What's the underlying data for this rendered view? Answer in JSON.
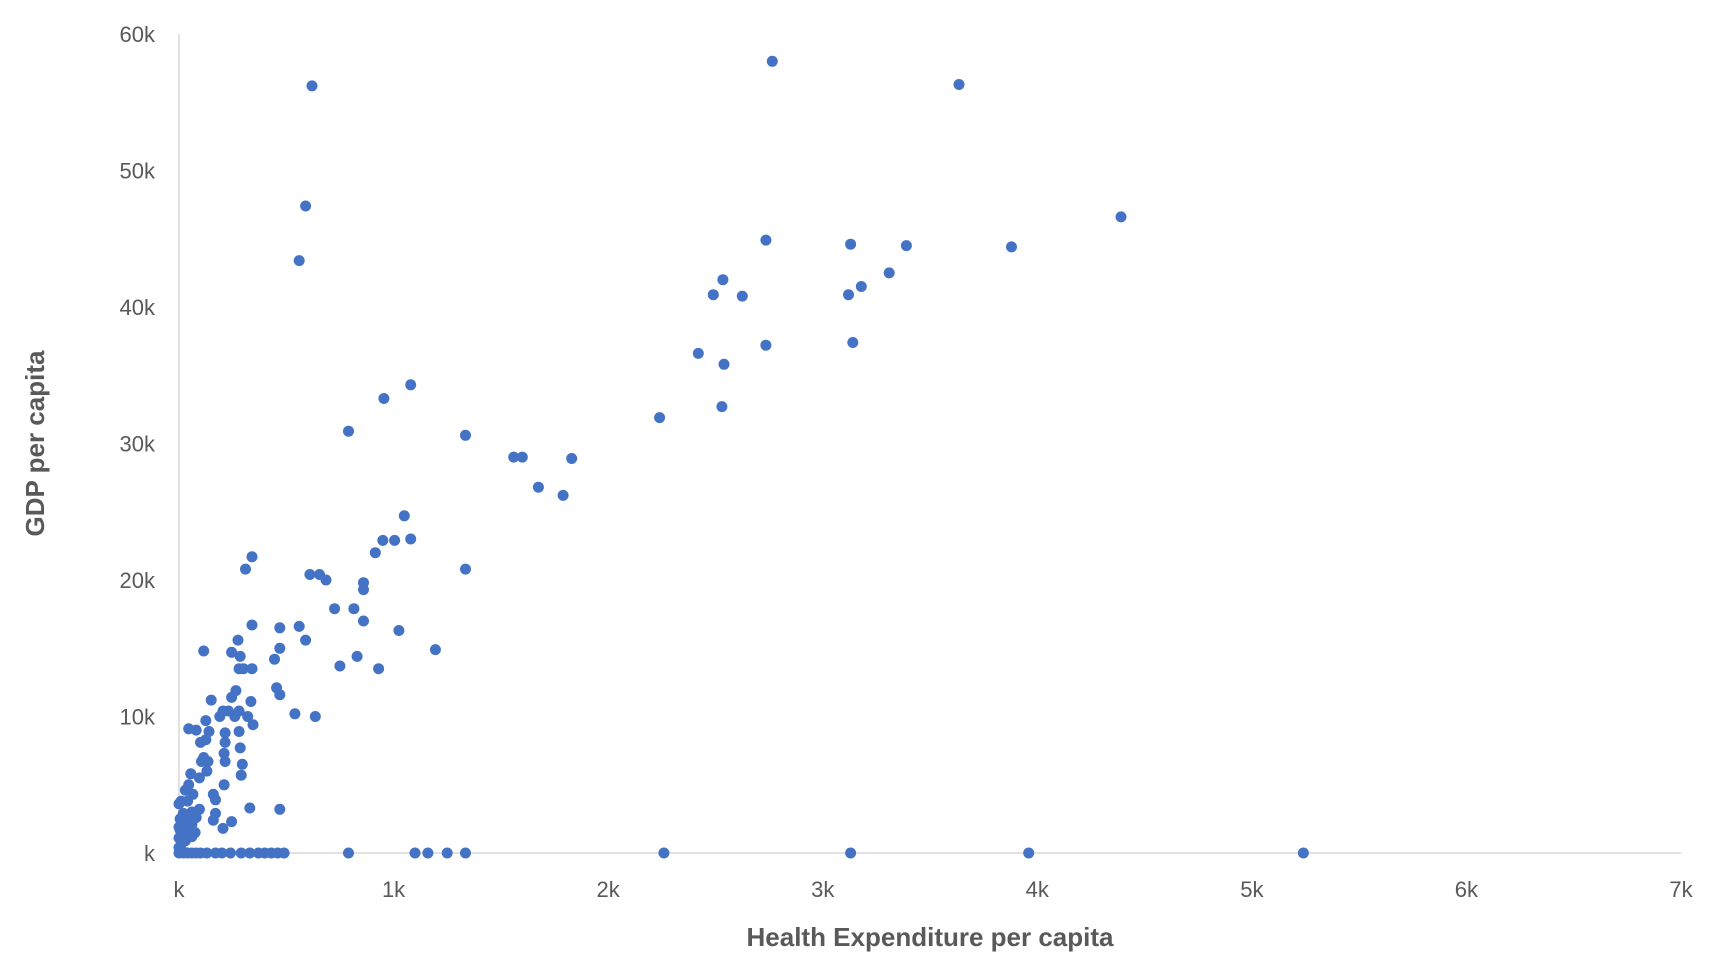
{
  "chart_data": {
    "type": "scatter",
    "title": "",
    "xlabel": "Health Expenditure per capita",
    "ylabel": "GDP per capita",
    "xlim": [
      0,
      7000
    ],
    "ylim": [
      0,
      60000
    ],
    "x_ticks": [
      0,
      1000,
      2000,
      3000,
      4000,
      5000,
      6000,
      7000
    ],
    "x_tick_labels": [
      "k",
      "1k",
      "2k",
      "3k",
      "4k",
      "5k",
      "6k",
      "7k"
    ],
    "y_ticks": [
      0,
      10000,
      20000,
      30000,
      40000,
      50000,
      60000
    ],
    "y_tick_labels": [
      "k",
      "10k",
      "20k",
      "30k",
      "40k",
      "50k",
      "60k"
    ],
    "grid": false,
    "legend": "none",
    "marker_color": "#4472c4",
    "series": [
      {
        "points": [
          [
            2765,
            58000
          ],
          [
            3635,
            56300
          ],
          [
            620,
            56200
          ],
          [
            590,
            47400
          ],
          [
            4390,
            46600
          ],
          [
            2735,
            44900
          ],
          [
            3130,
            44600
          ],
          [
            3390,
            44500
          ],
          [
            3880,
            44400
          ],
          [
            560,
            43400
          ],
          [
            3310,
            42500
          ],
          [
            2535,
            42000
          ],
          [
            3180,
            41500
          ],
          [
            2490,
            40900
          ],
          [
            3120,
            40900
          ],
          [
            2625,
            40800
          ],
          [
            2420,
            36600
          ],
          [
            2540,
            35800
          ],
          [
            2735,
            37200
          ],
          [
            3140,
            37400
          ],
          [
            1080,
            34300
          ],
          [
            955,
            33300
          ],
          [
            2530,
            32700
          ],
          [
            2240,
            31900
          ],
          [
            790,
            30900
          ],
          [
            1335,
            30600
          ],
          [
            1560,
            29000
          ],
          [
            1600,
            29000
          ],
          [
            1830,
            28900
          ],
          [
            1675,
            26800
          ],
          [
            1790,
            26200
          ],
          [
            1050,
            24700
          ],
          [
            950,
            22900
          ],
          [
            1005,
            22900
          ],
          [
            1080,
            23000
          ],
          [
            340,
            21700
          ],
          [
            915,
            22000
          ],
          [
            310,
            20800
          ],
          [
            1335,
            20800
          ],
          [
            610,
            20400
          ],
          [
            655,
            20400
          ],
          [
            685,
            20000
          ],
          [
            860,
            19800
          ],
          [
            860,
            19300
          ],
          [
            725,
            17900
          ],
          [
            815,
            17900
          ],
          [
            860,
            17000
          ],
          [
            560,
            16600
          ],
          [
            470,
            16500
          ],
          [
            340,
            16700
          ],
          [
            1025,
            16300
          ],
          [
            275,
            15600
          ],
          [
            590,
            15600
          ],
          [
            470,
            15000
          ],
          [
            115,
            14800
          ],
          [
            245,
            14700
          ],
          [
            1195,
            14900
          ],
          [
            285,
            14400
          ],
          [
            445,
            14200
          ],
          [
            830,
            14400
          ],
          [
            280,
            13500
          ],
          [
            300,
            13500
          ],
          [
            340,
            13500
          ],
          [
            750,
            13700
          ],
          [
            930,
            13500
          ],
          [
            265,
            11900
          ],
          [
            245,
            11400
          ],
          [
            455,
            12100
          ],
          [
            470,
            11600
          ],
          [
            150,
            11200
          ],
          [
            335,
            11100
          ],
          [
            205,
            10400
          ],
          [
            230,
            10400
          ],
          [
            280,
            10400
          ],
          [
            540,
            10200
          ],
          [
            635,
            10000
          ],
          [
            190,
            10000
          ],
          [
            260,
            10000
          ],
          [
            320,
            10000
          ],
          [
            125,
            9700
          ],
          [
            345,
            9400
          ],
          [
            45,
            9100
          ],
          [
            80,
            9000
          ],
          [
            140,
            8900
          ],
          [
            215,
            8800
          ],
          [
            280,
            8900
          ],
          [
            125,
            8300
          ],
          [
            100,
            8100
          ],
          [
            215,
            8100
          ],
          [
            285,
            7700
          ],
          [
            210,
            7300
          ],
          [
            115,
            7000
          ],
          [
            105,
            6700
          ],
          [
            135,
            6700
          ],
          [
            215,
            6700
          ],
          [
            295,
            6500
          ],
          [
            130,
            6000
          ],
          [
            55,
            5800
          ],
          [
            95,
            5500
          ],
          [
            290,
            5700
          ],
          [
            210,
            5000
          ],
          [
            45,
            5000
          ],
          [
            30,
            4600
          ],
          [
            65,
            4300
          ],
          [
            160,
            4300
          ],
          [
            170,
            3900
          ],
          [
            10,
            3800
          ],
          [
            40,
            3800
          ],
          [
            0,
            3600
          ],
          [
            95,
            3200
          ],
          [
            330,
            3300
          ],
          [
            470,
            3200
          ],
          [
            60,
            3000
          ],
          [
            80,
            3000
          ],
          [
            20,
            2900
          ],
          [
            170,
            2900
          ],
          [
            45,
            2600
          ],
          [
            80,
            2600
          ],
          [
            5,
            2500
          ],
          [
            160,
            2400
          ],
          [
            245,
            2300
          ],
          [
            30,
            2100
          ],
          [
            60,
            2100
          ],
          [
            0,
            1900
          ],
          [
            5,
            1700
          ],
          [
            25,
            1800
          ],
          [
            50,
            1800
          ],
          [
            205,
            1800
          ],
          [
            10,
            1500
          ],
          [
            40,
            1500
          ],
          [
            75,
            1500
          ],
          [
            0,
            1100
          ],
          [
            10,
            1000
          ],
          [
            60,
            1200
          ],
          [
            30,
            900
          ],
          [
            0,
            400
          ],
          [
            10,
            300
          ],
          [
            0,
            0
          ],
          [
            20,
            0
          ],
          [
            40,
            0
          ],
          [
            60,
            0
          ],
          [
            80,
            0
          ],
          [
            100,
            0
          ],
          [
            130,
            0
          ],
          [
            170,
            0
          ],
          [
            200,
            0
          ],
          [
            240,
            0
          ],
          [
            290,
            0
          ],
          [
            330,
            0
          ],
          [
            370,
            0
          ],
          [
            400,
            0
          ],
          [
            430,
            0
          ],
          [
            460,
            0
          ],
          [
            490,
            0
          ],
          [
            790,
            0
          ],
          [
            1100,
            0
          ],
          [
            1160,
            0
          ],
          [
            1250,
            0
          ],
          [
            1335,
            0
          ],
          [
            2260,
            0
          ],
          [
            3130,
            0
          ],
          [
            3960,
            0
          ],
          [
            5240,
            0
          ]
        ]
      }
    ]
  }
}
